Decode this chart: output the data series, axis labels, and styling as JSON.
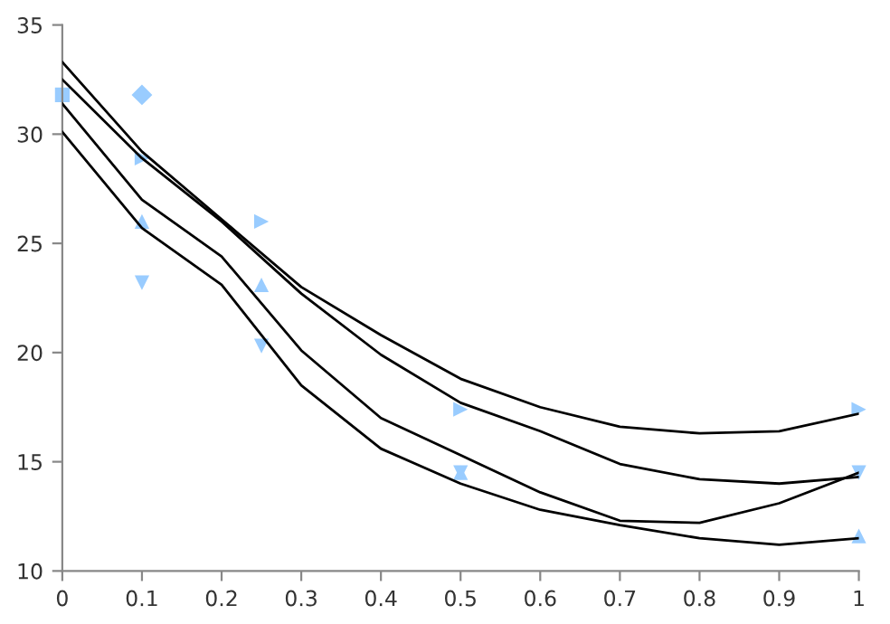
{
  "chart_data": {
    "type": "scatter",
    "xlim": [
      0,
      1
    ],
    "ylim": [
      10,
      35
    ],
    "xticks": [
      0,
      0.1,
      0.2,
      0.3,
      0.4,
      0.5,
      0.6,
      0.7,
      0.8,
      0.9,
      1
    ],
    "yticks": [
      10,
      15,
      20,
      25,
      30,
      35
    ],
    "grid": false,
    "series": [
      {
        "marker": "square",
        "color": "#99ccff",
        "x": [
          0
        ],
        "values": [
          31.8
        ]
      },
      {
        "marker": "diamond",
        "color": "#99ccff",
        "x": [
          0.1
        ],
        "values": [
          31.8
        ]
      },
      {
        "marker": "triangle",
        "color": "#99ccff",
        "x": [
          0.1,
          0.25,
          0.5,
          1
        ],
        "values": [
          28.9,
          26.0,
          17.4,
          17.4
        ]
      },
      {
        "marker": "triangle",
        "color": "#99ccff",
        "x": [
          0.1,
          0.25,
          0.5,
          1
        ],
        "values": [
          26.0,
          23.1,
          14.5,
          11.6
        ]
      },
      {
        "marker": "triangle",
        "color": "#99ccff",
        "x": [
          0.1,
          0.25,
          0.5,
          1
        ],
        "values": [
          23.2,
          20.3,
          14.5,
          14.5
        ]
      },
      {
        "type": "line",
        "marker": "none",
        "line_style": "solid",
        "color": "#000000",
        "x": [
          0,
          0.1,
          0.2,
          0.3,
          0.4,
          0.5,
          0.6,
          0.7,
          0.8,
          0.9,
          1
        ],
        "values": [
          33.3,
          29.2,
          26.1,
          23.0,
          20.8,
          18.8,
          17.5,
          16.6,
          16.3,
          16.4,
          17.2
        ]
      },
      {
        "type": "line",
        "marker": "none",
        "line_style": "solid",
        "color": "#000000",
        "x": [
          0,
          0.1,
          0.2,
          0.3,
          0.4,
          0.5,
          0.6,
          0.7,
          0.8,
          0.9,
          1
        ],
        "values": [
          32.5,
          28.9,
          26.0,
          22.7,
          19.9,
          17.7,
          16.4,
          14.9,
          14.2,
          14.0,
          14.3
        ]
      },
      {
        "type": "line",
        "marker": "none",
        "line_style": "solid",
        "color": "#000000",
        "x": [
          0,
          0.1,
          0.2,
          0.3,
          0.4,
          0.5,
          0.6,
          0.7,
          0.8,
          0.9,
          1
        ],
        "values": [
          31.4,
          27.0,
          24.4,
          20.1,
          17.0,
          15.3,
          13.6,
          12.3,
          12.2,
          13.1,
          14.5
        ]
      },
      {
        "type": "line",
        "marker": "none",
        "line_style": "solid",
        "color": "#000000",
        "x": [
          0,
          0.1,
          0.2,
          0.3,
          0.4,
          0.5,
          0.6,
          0.7,
          0.8,
          0.9,
          1
        ],
        "values": [
          30.1,
          25.7,
          23.1,
          18.5,
          15.6,
          14.0,
          12.8,
          12.1,
          11.5,
          11.2,
          11.5
        ]
      }
    ]
  }
}
